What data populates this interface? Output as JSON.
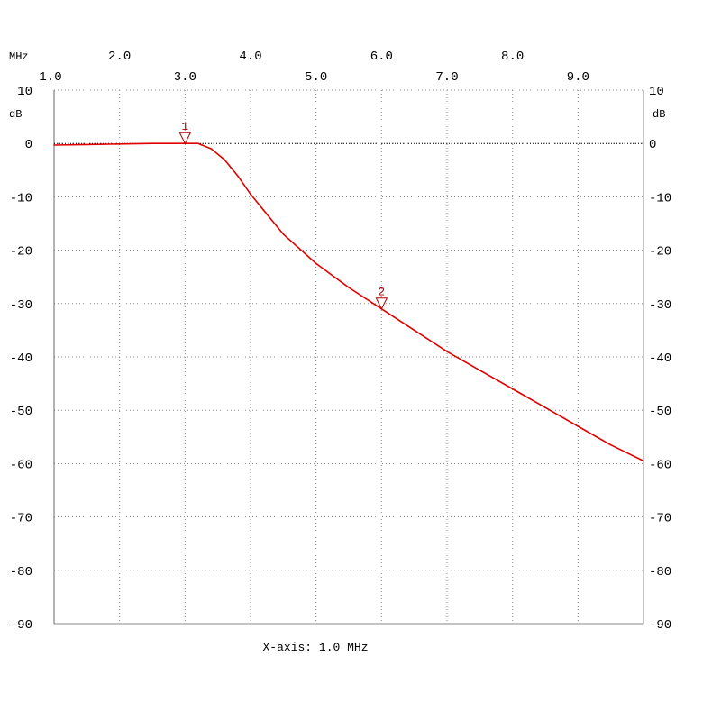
{
  "chart_data": {
    "type": "line",
    "x_unit": "MHz",
    "y_unit": "dB",
    "footer": "X-axis: 1.0 MHz",
    "x_ticks_top": [
      "2.0",
      "4.0",
      "6.0",
      "8.0"
    ],
    "x_ticks_bottom": [
      "1.0",
      "3.0",
      "5.0",
      "7.0",
      "9.0"
    ],
    "xlim": [
      1.0,
      10.0
    ],
    "ylim": [
      -90,
      10
    ],
    "y_ticks": [
      10,
      0,
      -10,
      -20,
      -30,
      -40,
      -50,
      -60,
      -70,
      -80,
      -90
    ],
    "y_tick_labels": [
      "10",
      "0",
      "-10",
      "-20",
      "-30",
      "-40",
      "-50",
      "-60",
      "-70",
      "-80",
      "-90"
    ],
    "grid": true,
    "reference_line_db": 0,
    "series": [
      {
        "color": "#e00000",
        "x": [
          1.0,
          1.5,
          2.0,
          2.5,
          3.0,
          3.2,
          3.4,
          3.6,
          3.8,
          4.0,
          4.2,
          4.5,
          5.0,
          5.5,
          6.0,
          6.5,
          7.0,
          7.5,
          8.0,
          8.5,
          9.0,
          9.5,
          10.0
        ],
        "values": [
          -0.3,
          -0.2,
          -0.1,
          0.0,
          0.0,
          0.0,
          -1.0,
          -3.0,
          -6.0,
          -9.5,
          -12.5,
          -17.0,
          -22.5,
          -27.0,
          -31.0,
          -35.0,
          -39.0,
          -42.5,
          -46.0,
          -49.5,
          -53.0,
          -56.5,
          -59.5
        ]
      }
    ],
    "markers": [
      {
        "label": "1",
        "x": 3.0,
        "y": 0.0
      },
      {
        "label": "2",
        "x": 6.0,
        "y": -31.0
      }
    ],
    "colors": {
      "trace": "#e00000",
      "marker": "#b00000",
      "grid": "#888888",
      "text": "#000000"
    }
  }
}
